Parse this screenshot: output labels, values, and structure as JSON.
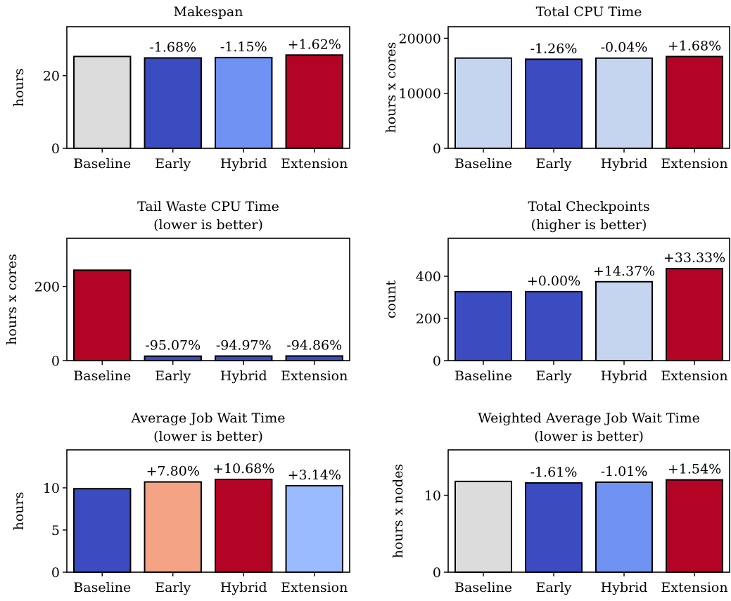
{
  "chart_data": [
    {
      "type": "bar",
      "title": "Makespan",
      "subtitle": "",
      "ylabel": "hours",
      "categories": [
        "Baseline",
        "Early",
        "Hybrid",
        "Extension"
      ],
      "values": [
        25.3,
        24.9,
        25.0,
        25.7
      ],
      "annotations": [
        "",
        "-1.68%",
        "-1.15%",
        "+1.62%"
      ],
      "colors": [
        "#dddcdc",
        "#3b4cc0",
        "#6f92f3",
        "#b40426"
      ],
      "ylim": [
        0,
        33.5
      ],
      "yticks": [
        0,
        20
      ]
    },
    {
      "type": "bar",
      "title": "Total CPU Time",
      "subtitle": "",
      "ylabel": "hours x cores",
      "categories": [
        "Baseline",
        "Early",
        "Hybrid",
        "Extension"
      ],
      "values": [
        16400,
        16190,
        16390,
        16680
      ],
      "annotations": [
        "",
        "-1.26%",
        "-0.04%",
        "+1.68%"
      ],
      "colors": [
        "#c5d5f0",
        "#3b4cc0",
        "#c5d5f0",
        "#b40426"
      ],
      "ylim": [
        0,
        22100
      ],
      "yticks": [
        0,
        10000,
        20000
      ]
    },
    {
      "type": "bar",
      "title": "Tail Waste CPU Time",
      "subtitle": "(lower is better)",
      "ylabel": "hours x cores",
      "categories": [
        "Baseline",
        "Early",
        "Hybrid",
        "Extension"
      ],
      "values": [
        244,
        12.0,
        12.3,
        12.5
      ],
      "annotations": [
        "",
        "-95.07%",
        "-94.97%",
        "-94.86%"
      ],
      "colors": [
        "#b40426",
        "#3b4cc0",
        "#3b4cc0",
        "#3b4cc0"
      ],
      "ylim": [
        0,
        330
      ],
      "yticks": [
        0,
        200
      ]
    },
    {
      "type": "bar",
      "title": "Total Checkpoints",
      "subtitle": "(higher is better)",
      "ylabel": "count",
      "categories": [
        "Baseline",
        "Early",
        "Hybrid",
        "Extension"
      ],
      "values": [
        327,
        327,
        374,
        436
      ],
      "annotations": [
        "",
        "+0.00%",
        "+14.37%",
        "+33.33%"
      ],
      "colors": [
        "#3b4cc0",
        "#3b4cc0",
        "#c5d5f0",
        "#b40426"
      ],
      "ylim": [
        0,
        580
      ],
      "yticks": [
        0,
        200,
        400
      ]
    },
    {
      "type": "bar",
      "title": "Average Job Wait Time",
      "subtitle": "(lower is better)",
      "ylabel": "hours",
      "categories": [
        "Baseline",
        "Early",
        "Hybrid",
        "Extension"
      ],
      "values": [
        9.9,
        10.7,
        11.0,
        10.25
      ],
      "annotations": [
        "",
        "+7.80%",
        "+10.68%",
        "+3.14%"
      ],
      "colors": [
        "#3b4cc0",
        "#f4a384",
        "#b40426",
        "#9abbff"
      ],
      "ylim": [
        0,
        14.5
      ],
      "yticks": [
        0,
        5,
        10
      ]
    },
    {
      "type": "bar",
      "title": "Weighted Average Job Wait Time",
      "subtitle": "(lower is better)",
      "ylabel": "hours x nodes",
      "categories": [
        "Baseline",
        "Early",
        "Hybrid",
        "Extension"
      ],
      "values": [
        11.8,
        11.6,
        11.7,
        12.0
      ],
      "annotations": [
        "",
        "-1.61%",
        "-1.01%",
        "+1.54%"
      ],
      "colors": [
        "#dddcdc",
        "#3b4cc0",
        "#6f92f3",
        "#b40426"
      ],
      "ylim": [
        0,
        15.9
      ],
      "yticks": [
        0,
        10
      ]
    }
  ]
}
